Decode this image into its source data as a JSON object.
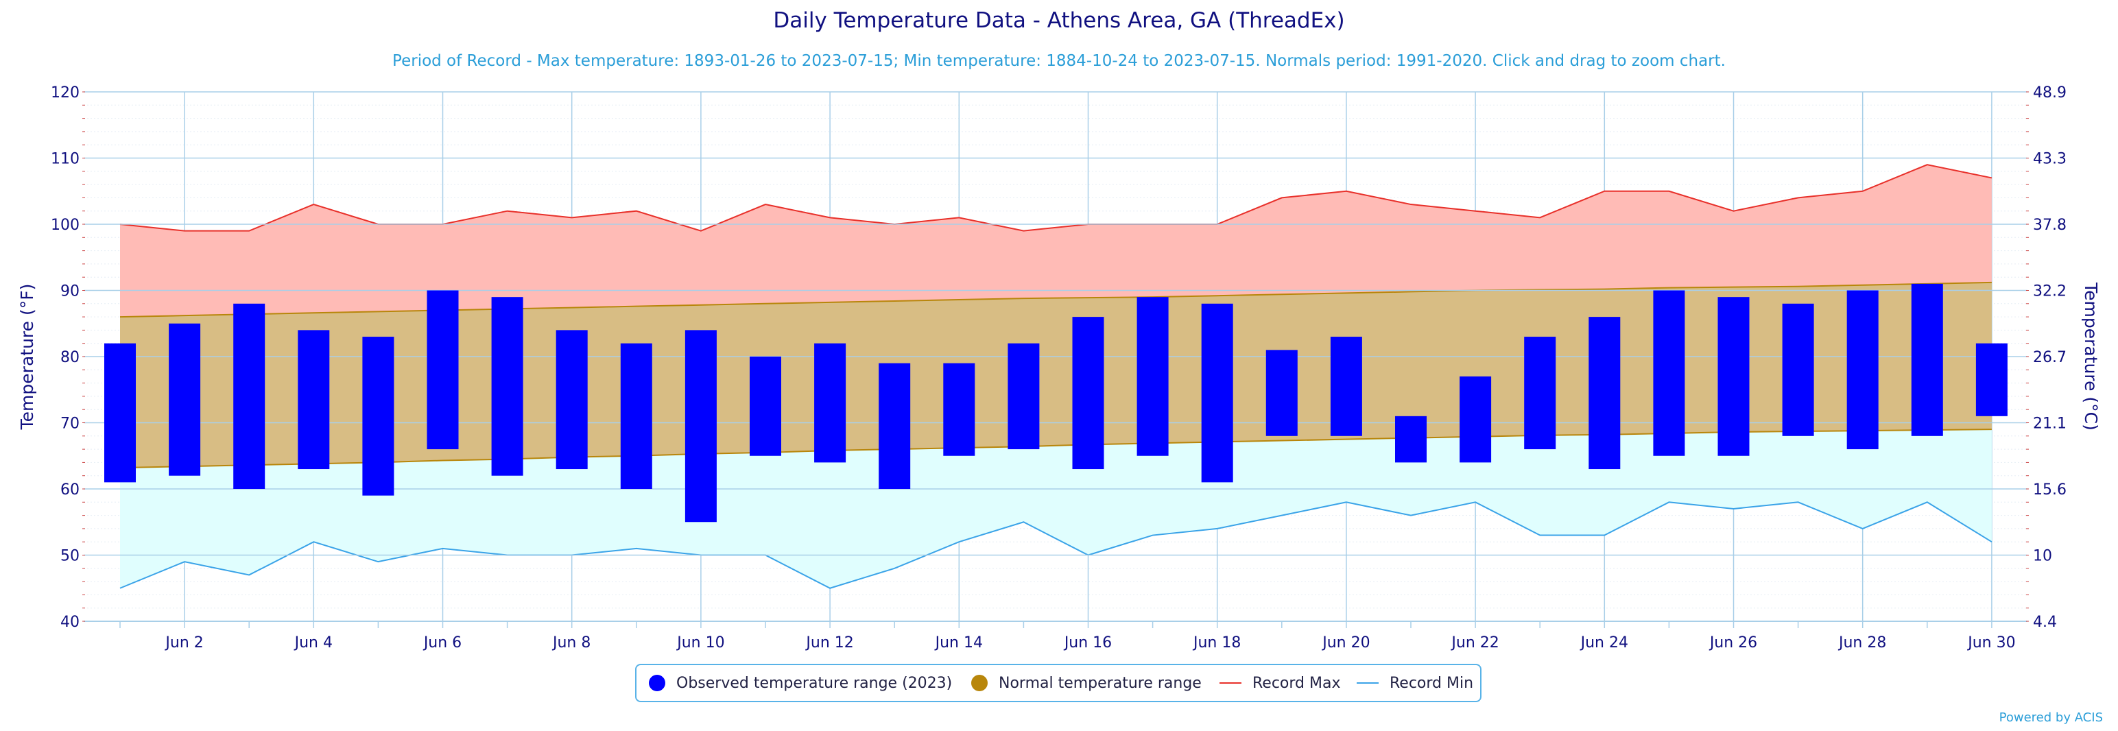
{
  "title": "Daily Temperature Data - Athens Area, GA (ThreadEx)",
  "subtitle": "Period of Record - Max temperature: 1893-01-26 to 2023-07-15; Min temperature: 1884-10-24 to 2023-07-15. Normals period: 1991-2020. Click and drag to zoom chart.",
  "credits": "Powered by ACIS",
  "legend": {
    "observed": "Observed temperature range (2023)",
    "normal": "Normal temperature range",
    "record_max": "Record Max",
    "record_min": "Record Min"
  },
  "colors": {
    "observed": "#0000ff",
    "normal_fill": "#d8bd84",
    "normal_legend": "#b8860b",
    "record_max_fill": "#ffbbb6",
    "record_max_line": "#e8302a",
    "record_min_fill": "#e0fefe",
    "record_min_line": "#3aa3e8",
    "grid": "#a9cfe8",
    "axis_text": "#101080"
  },
  "chart_data": {
    "type": "bar",
    "xlabel": "",
    "ylabel": "Temperature (°F)",
    "ylabel_right": "Temperature (°C)",
    "ylim": [
      40,
      120
    ],
    "y_ticks": [
      40,
      50,
      60,
      70,
      80,
      90,
      100,
      110,
      120
    ],
    "y_ticks_right": [
      "4.4",
      "10",
      "15.6",
      "21.1",
      "26.7",
      "32.2",
      "37.8",
      "43.3",
      "48.9"
    ],
    "x_tick_labels": [
      "Jun 2",
      "Jun 4",
      "Jun 6",
      "Jun 8",
      "Jun 10",
      "Jun 12",
      "Jun 14",
      "Jun 16",
      "Jun 18",
      "Jun 20",
      "Jun 22",
      "Jun 24",
      "Jun 26",
      "Jun 28",
      "Jun 30"
    ],
    "days": [
      1,
      2,
      3,
      4,
      5,
      6,
      7,
      8,
      9,
      10,
      11,
      12,
      13,
      14,
      15,
      16,
      17,
      18,
      19,
      20,
      21,
      22,
      23,
      24,
      25,
      26,
      27,
      28,
      29,
      30
    ],
    "observed_max": [
      82,
      85,
      88,
      84,
      83,
      90,
      89,
      84,
      82,
      84,
      80,
      82,
      79,
      79,
      82,
      86,
      89,
      88,
      81,
      83,
      71,
      77,
      83,
      86,
      90,
      89,
      88,
      90,
      91,
      82
    ],
    "observed_min": [
      61,
      62,
      60,
      63,
      59,
      66,
      62,
      63,
      60,
      55,
      65,
      64,
      60,
      65,
      66,
      63,
      65,
      61,
      68,
      68,
      64,
      64,
      66,
      63,
      65,
      65,
      68,
      66,
      68,
      71
    ],
    "normal_max": [
      86,
      86.2,
      86.4,
      86.6,
      86.8,
      87,
      87.2,
      87.4,
      87.6,
      87.8,
      88,
      88.2,
      88.4,
      88.6,
      88.8,
      88.9,
      89,
      89.2,
      89.4,
      89.6,
      89.8,
      90,
      90.1,
      90.2,
      90.4,
      90.5,
      90.6,
      90.8,
      91,
      91.2
    ],
    "normal_min": [
      63.2,
      63.4,
      63.6,
      63.8,
      64,
      64.3,
      64.5,
      64.8,
      65,
      65.3,
      65.5,
      65.8,
      66,
      66.2,
      66.4,
      66.7,
      66.9,
      67.1,
      67.3,
      67.5,
      67.7,
      67.9,
      68.1,
      68.2,
      68.4,
      68.6,
      68.7,
      68.8,
      68.9,
      69
    ],
    "record_max": [
      100,
      99,
      99,
      103,
      100,
      100,
      102,
      101,
      102,
      99,
      103,
      101,
      100,
      101,
      99,
      100,
      100,
      100,
      104,
      105,
      103,
      102,
      101,
      105,
      105,
      102,
      104,
      105,
      109,
      107
    ],
    "record_min": [
      45,
      49,
      47,
      52,
      49,
      51,
      50,
      50,
      51,
      50,
      50,
      45,
      48,
      52,
      55,
      50,
      53,
      54,
      56,
      58,
      56,
      58,
      53,
      53,
      58,
      57,
      58,
      54,
      58,
      52
    ]
  }
}
